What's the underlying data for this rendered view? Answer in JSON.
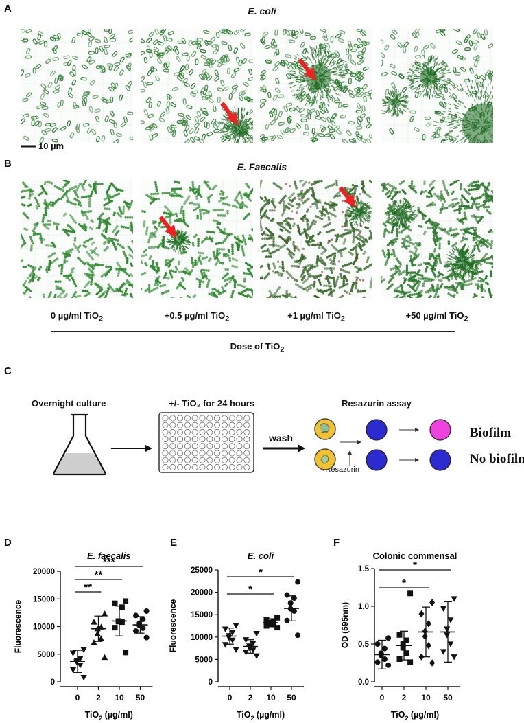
{
  "panels": {
    "A": {
      "label": "A",
      "title": "E. coli",
      "scale_bar": "10 µm"
    },
    "B": {
      "label": "B",
      "title": "E. Faecalis"
    },
    "C": {
      "label": "C"
    },
    "D": {
      "label": "D"
    },
    "E": {
      "label": "E"
    },
    "F": {
      "label": "F"
    }
  },
  "doses": [
    {
      "pre": "0 µg/ml TiO",
      "sub": "2"
    },
    {
      "pre": "+0.5 µg/ml TiO",
      "sub": "2"
    },
    {
      "pre": "+1 µg/ml TiO",
      "sub": "2"
    },
    {
      "pre": "+50 µg/ml TiO",
      "sub": "2"
    }
  ],
  "dose_axis": {
    "pre": "Dose of TiO",
    "sub": "2"
  },
  "schematic": {
    "step1": "Overnight culture",
    "step2": "+/- TiO₂ for 24 hours",
    "wash": "wash",
    "assay": "Resazurin assay",
    "add": "+Resazurin",
    "biofilm": "Biofilm",
    "no_biofilm": "No biofilm"
  },
  "colors": {
    "arrow": "#ee2222",
    "bacteria": "#2e7d32",
    "blue_well": "#2b2bd0",
    "pink_well": "#ee44dd",
    "yellow_well": "#f2c12e"
  },
  "chart_data": [
    {
      "type": "scatter",
      "title": "E. faecalis",
      "xlabel_pre": "TiO",
      "xlabel_sub": "2",
      "xlabel_post": " (µg/ml)",
      "ylabel": "Fluorescence",
      "categories": [
        "0",
        "2",
        "10",
        "50"
      ],
      "ylim": [
        0,
        20000
      ],
      "yticks": [
        0,
        5000,
        10000,
        15000,
        20000
      ],
      "markers": [
        "triangle-down",
        "triangle-up",
        "square",
        "circle"
      ],
      "points": [
        [
          5800,
          5200,
          4200,
          3900,
          3600,
          3000,
          2200,
          800
        ],
        [
          12300,
          10800,
          9900,
          9600,
          8700,
          7800,
          7100,
          4400
        ],
        [
          14600,
          14200,
          13500,
          11000,
          10900,
          10800,
          9800,
          5300
        ],
        [
          12800,
          12000,
          11300,
          10600,
          10200,
          9700,
          9200,
          8000
        ]
      ],
      "mean": [
        3700,
        9600,
        11000,
        10300
      ],
      "sd": [
        2000,
        2300,
        2700,
        1500
      ],
      "significance": [
        {
          "from": "0",
          "to": "50",
          "label": "***"
        },
        {
          "from": "0",
          "to": "10",
          "label": "**"
        },
        {
          "from": "0",
          "to": "2",
          "label": "**"
        }
      ]
    },
    {
      "type": "scatter",
      "title": "E. coli",
      "xlabel_pre": "TiO",
      "xlabel_sub": "2",
      "xlabel_post": " (µg/ml)",
      "ylabel": "Fluorescence",
      "categories": [
        "0",
        "2",
        "10",
        "50"
      ],
      "ylim": [
        0,
        25000
      ],
      "yticks": [
        0,
        5000,
        10000,
        15000,
        20000,
        25000
      ],
      "markers": [
        "triangle-down",
        "triangle-down",
        "square",
        "circle"
      ],
      "points": [
        [
          12600,
          11800,
          11000,
          10300,
          9900,
          9300,
          8300,
          7200
        ],
        [
          10800,
          9400,
          8600,
          8000,
          7600,
          7100,
          6600,
          5800
        ],
        [
          14300,
          13800,
          13500,
          13200,
          13000,
          12800,
          12500,
          12100
        ],
        [
          22300,
          19400,
          18700,
          17600,
          16300,
          15800,
          13700,
          10400
        ]
      ],
      "mean": [
        10200,
        7900,
        13200,
        16400
      ],
      "sd": [
        1800,
        1500,
        900,
        2800
      ],
      "significance": [
        {
          "from": "0",
          "to": "50",
          "label": "*"
        },
        {
          "from": "0",
          "to": "10",
          "label": "*"
        }
      ]
    },
    {
      "type": "scatter",
      "title": "Colonic commensal",
      "xlabel_pre": "TiO",
      "xlabel_sub": "2",
      "xlabel_post": " (µg/ml)",
      "ylabel": "OD (595nm)",
      "categories": [
        "0",
        "2",
        "10",
        "50"
      ],
      "ylim": [
        0,
        1.5
      ],
      "yticks": [
        0.0,
        0.5,
        1.0,
        1.5
      ],
      "markers": [
        "circle",
        "square",
        "diamond",
        "triangle-down"
      ],
      "points": [
        [
          0.58,
          0.5,
          0.44,
          0.38,
          0.35,
          0.3,
          0.26,
          0.22
        ],
        [
          1.17,
          0.62,
          0.55,
          0.5,
          0.45,
          0.38,
          0.3,
          0.26
        ],
        [
          1.05,
          0.9,
          0.77,
          0.67,
          0.6,
          0.48,
          0.33,
          0.25
        ],
        [
          1.1,
          0.97,
          0.82,
          0.7,
          0.62,
          0.5,
          0.4,
          0.33
        ]
      ],
      "mean": [
        0.36,
        0.48,
        0.66,
        0.66
      ],
      "sd": [
        0.19,
        0.19,
        0.33,
        0.4
      ],
      "significance": [
        {
          "from": "0",
          "to": "50",
          "label": "*"
        },
        {
          "from": "0",
          "to": "10",
          "label": "*"
        }
      ]
    }
  ]
}
